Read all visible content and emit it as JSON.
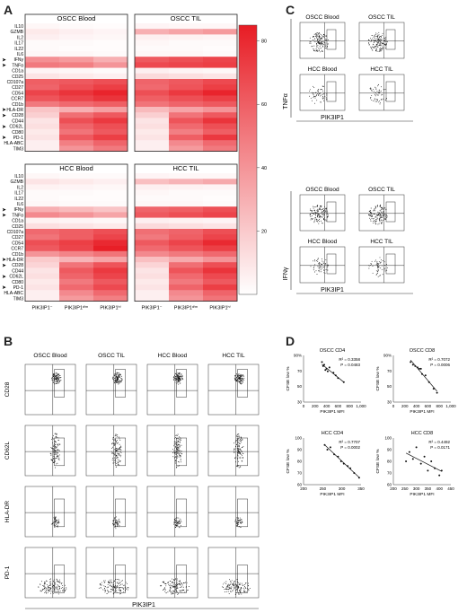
{
  "panels": {
    "A": "A",
    "B": "B",
    "C": "C",
    "D": "D"
  },
  "heatmap": {
    "rows": [
      "IL10",
      "GZMB",
      "IL2",
      "IL17",
      "IL22",
      "IL6",
      "IFNγ",
      "TNFα",
      "CD1a",
      "CD25",
      "CD107a",
      "CD27",
      "CD54",
      "CCR7",
      "CD1b",
      "HLA-DR",
      "CD28",
      "CD44",
      "CD62L",
      "CD80",
      "PD-1",
      "HLA-ABC",
      "TIM3"
    ],
    "arrow_rows": [
      6,
      7,
      15,
      16,
      18,
      20
    ],
    "columns": [
      "PIK3IP1⁻",
      "PIK3IP1ᵈⁱᵐ",
      "PIK3IP1ʰⁱ"
    ],
    "blocks": [
      {
        "title": "OSCC Blood",
        "values": [
          [
            3,
            2,
            1
          ],
          [
            8,
            6,
            4
          ],
          [
            6,
            4,
            3
          ],
          [
            2,
            2,
            1
          ],
          [
            2,
            1,
            1
          ],
          [
            3,
            3,
            2
          ],
          [
            42,
            38,
            30
          ],
          [
            50,
            48,
            40
          ],
          [
            4,
            3,
            2
          ],
          [
            10,
            8,
            6
          ],
          [
            60,
            62,
            66
          ],
          [
            58,
            66,
            72
          ],
          [
            70,
            76,
            82
          ],
          [
            64,
            70,
            76
          ],
          [
            50,
            56,
            60
          ],
          [
            22,
            30,
            36
          ],
          [
            18,
            54,
            62
          ],
          [
            10,
            66,
            74
          ],
          [
            12,
            58,
            66
          ],
          [
            8,
            52,
            62
          ],
          [
            10,
            62,
            72
          ],
          [
            6,
            48,
            58
          ],
          [
            6,
            40,
            50
          ]
        ]
      },
      {
        "title": "OSCC TIL",
        "values": [
          [
            4,
            3,
            3
          ],
          [
            30,
            34,
            38
          ],
          [
            6,
            5,
            4
          ],
          [
            3,
            2,
            2
          ],
          [
            2,
            2,
            1
          ],
          [
            3,
            3,
            2
          ],
          [
            62,
            66,
            70
          ],
          [
            68,
            70,
            72
          ],
          [
            6,
            4,
            3
          ],
          [
            14,
            12,
            10
          ],
          [
            58,
            62,
            68
          ],
          [
            56,
            64,
            72
          ],
          [
            66,
            74,
            82
          ],
          [
            60,
            66,
            72
          ],
          [
            52,
            58,
            62
          ],
          [
            26,
            34,
            40
          ],
          [
            18,
            52,
            62
          ],
          [
            10,
            64,
            76
          ],
          [
            12,
            56,
            66
          ],
          [
            8,
            48,
            60
          ],
          [
            10,
            60,
            74
          ],
          [
            6,
            44,
            56
          ],
          [
            6,
            38,
            50
          ]
        ]
      },
      {
        "title": "HCC Blood",
        "values": [
          [
            3,
            2,
            2
          ],
          [
            10,
            8,
            6
          ],
          [
            5,
            4,
            3
          ],
          [
            2,
            2,
            1
          ],
          [
            2,
            1,
            1
          ],
          [
            3,
            2,
            2
          ],
          [
            30,
            26,
            22
          ],
          [
            44,
            40,
            34
          ],
          [
            5,
            4,
            3
          ],
          [
            12,
            10,
            8
          ],
          [
            56,
            60,
            66
          ],
          [
            52,
            60,
            70
          ],
          [
            66,
            72,
            80
          ],
          [
            62,
            70,
            84
          ],
          [
            40,
            46,
            52
          ],
          [
            20,
            28,
            34
          ],
          [
            16,
            52,
            64
          ],
          [
            10,
            62,
            74
          ],
          [
            12,
            58,
            70
          ],
          [
            8,
            50,
            62
          ],
          [
            10,
            56,
            68
          ],
          [
            6,
            44,
            56
          ],
          [
            6,
            38,
            48
          ]
        ]
      },
      {
        "title": "HCC TIL",
        "values": [
          [
            4,
            3,
            3
          ],
          [
            24,
            28,
            32
          ],
          [
            6,
            5,
            4
          ],
          [
            3,
            2,
            2
          ],
          [
            2,
            2,
            1
          ],
          [
            3,
            3,
            2
          ],
          [
            58,
            60,
            66
          ],
          [
            62,
            66,
            70
          ],
          [
            6,
            5,
            4
          ],
          [
            14,
            12,
            10
          ],
          [
            54,
            58,
            66
          ],
          [
            50,
            60,
            70
          ],
          [
            62,
            70,
            80
          ],
          [
            56,
            64,
            72
          ],
          [
            44,
            50,
            56
          ],
          [
            24,
            32,
            40
          ],
          [
            16,
            54,
            66
          ],
          [
            10,
            64,
            76
          ],
          [
            12,
            56,
            68
          ],
          [
            8,
            50,
            62
          ],
          [
            10,
            58,
            72
          ],
          [
            6,
            44,
            58
          ],
          [
            6,
            40,
            52
          ]
        ]
      }
    ],
    "colorbar_ticks": [
      "80",
      "60",
      "40",
      "20"
    ]
  },
  "panel_b": {
    "columns": [
      "OSCC Blood",
      "OSCC TIL",
      "HCC Blood",
      "HCC TIL"
    ],
    "rows": [
      "CD28",
      "CD62L",
      "HLA-DR",
      "PD-1"
    ],
    "xlabel": "PIK3IP1"
  },
  "panel_c": {
    "top": {
      "titles": [
        "OSCC Blood",
        "OSCC TIL",
        "HCC Blood",
        "HCC TIL"
      ],
      "ylabel": "TNFα",
      "xlabel": "PIK3IP1"
    },
    "bottom": {
      "titles": [
        "OSCC Blood",
        "OSCC TIL",
        "HCC Blood",
        "HCC TIL"
      ],
      "ylabel": "IFNγ",
      "xlabel": "PIK3IP1"
    }
  },
  "chart_data": [
    {
      "type": "scatter",
      "title": "OSCC CD4",
      "xlabel": "PIK3IP1 MFI",
      "ylabel": "CFSE low %",
      "xlim": [
        0,
        1000
      ],
      "ylim": [
        30,
        100
      ],
      "xticks": [
        "0",
        "200",
        "400",
        "600",
        "800",
        "1,000"
      ],
      "yticks": [
        "30",
        "50",
        "70",
        "90%"
      ],
      "x": [
        320,
        340,
        360,
        380,
        400,
        420,
        450,
        520,
        560,
        600,
        700
      ],
      "y": [
        90,
        84,
        86,
        78,
        80,
        76,
        82,
        74,
        70,
        66,
        60
      ],
      "r2": "R² = 0.3358",
      "p": "P = 0.0483"
    },
    {
      "type": "scatter",
      "title": "OSCC CD8",
      "xlabel": "PIK3IP1 MFI",
      "ylabel": "CFSE low %",
      "xlim": [
        0,
        1000
      ],
      "ylim": [
        30,
        100
      ],
      "xticks": [
        "0",
        "200",
        "400",
        "600",
        "800",
        "1,000"
      ],
      "yticks": [
        "30",
        "50",
        "70",
        "90%"
      ],
      "x": [
        300,
        340,
        380,
        420,
        450,
        480,
        500,
        560,
        620,
        700,
        760
      ],
      "y": [
        90,
        86,
        84,
        82,
        80,
        80,
        72,
        70,
        60,
        50,
        44
      ],
      "r2": "R² = 0.7072",
      "p": "P = 0.0006"
    },
    {
      "type": "scatter",
      "title": "HCC CD4",
      "xlabel": "PIK3IP1 MFI",
      "ylabel": "CFSE low %",
      "xlim": [
        200,
        350
      ],
      "ylim": [
        60,
        100
      ],
      "xticks": [
        "200",
        "250",
        "300",
        "350"
      ],
      "yticks": [
        "60",
        "70",
        "80",
        "90",
        "100"
      ],
      "x": [
        255,
        262,
        270,
        280,
        290,
        298,
        305,
        315,
        322,
        332,
        345
      ],
      "y": [
        94,
        90,
        92,
        86,
        84,
        80,
        78,
        76,
        74,
        70,
        66
      ],
      "r2": "R² = 0.7707",
      "p": "P = 0.0002"
    },
    {
      "type": "scatter",
      "title": "HCC CD8",
      "xlabel": "PIK3IP1 MFI",
      "ylabel": "CFSE low %",
      "xlim": [
        200,
        450
      ],
      "ylim": [
        60,
        100
      ],
      "xticks": [
        "200",
        "250",
        "300",
        "350",
        "400",
        "450"
      ],
      "yticks": [
        "60",
        "70",
        "80",
        "90",
        "100"
      ],
      "x": [
        255,
        270,
        285,
        300,
        320,
        335,
        350,
        365,
        380,
        400,
        410
      ],
      "y": [
        80,
        88,
        82,
        92,
        78,
        84,
        72,
        80,
        74,
        68,
        72
      ],
      "r2": "R² = 0.4492",
      "p": "P = 0.0171"
    }
  ]
}
